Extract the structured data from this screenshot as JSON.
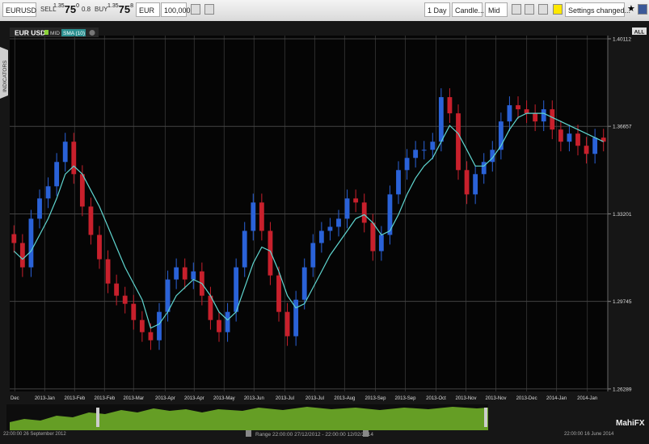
{
  "toolbar": {
    "symbol": "EURUSD",
    "sell_label": "SELL",
    "sell_price": {
      "prefix": "1.35",
      "pips": "75",
      "fraction": "0"
    },
    "spread": "0.8",
    "buy_label": "BUY",
    "buy_price": {
      "prefix": "1.35",
      "pips": "75",
      "fraction": "8"
    },
    "currency": "EUR",
    "amount": "100,000",
    "timeframe": "1 Day",
    "chart_style": "Candle...",
    "price_type": "Mid",
    "settings": "Settings changed..."
  },
  "chart_header": {
    "pair": "EUR USD",
    "mid": "MID",
    "all": "ALL"
  },
  "side_tab": "INDICATORS",
  "chart_data": {
    "type": "candlestick",
    "up_color": "#2a62d8",
    "down_color": "#c8202c",
    "grid": true,
    "xlim": [
      -0.5,
      69.5
    ],
    "ylim": [
      1.2619,
      1.4024
    ],
    "yticks": [
      1.40112,
      1.36657,
      1.33201,
      1.29745,
      1.26289
    ],
    "xticks": [
      {
        "value": 0.1,
        "label": "Dec"
      },
      {
        "value": 3.6,
        "label": "2013-Jan"
      },
      {
        "value": 7.1,
        "label": "2013-Feb"
      },
      {
        "value": 10.6,
        "label": "2013-Feb"
      },
      {
        "value": 14.0,
        "label": "2013-Mar"
      },
      {
        "value": 17.7,
        "label": "2013-Apr"
      },
      {
        "value": 21.1,
        "label": "2013-Apr"
      },
      {
        "value": 24.6,
        "label": "2013-May"
      },
      {
        "value": 28.1,
        "label": "2013-Jun"
      },
      {
        "value": 31.7,
        "label": "2013-Jul"
      },
      {
        "value": 35.2,
        "label": "2013-Jul"
      },
      {
        "value": 38.7,
        "label": "2013-Aug"
      },
      {
        "value": 42.3,
        "label": "2013-Sep"
      },
      {
        "value": 45.8,
        "label": "2013-Sep"
      },
      {
        "value": 49.4,
        "label": "2013-Oct"
      },
      {
        "value": 52.9,
        "label": "2013-Nov"
      },
      {
        "value": 56.4,
        "label": "2013-Nov"
      },
      {
        "value": 60.0,
        "label": "2013-Dec"
      },
      {
        "value": 63.5,
        "label": "2014-Jan"
      },
      {
        "value": 67.1,
        "label": "2014-Jan"
      }
    ],
    "open": [
      1.324,
      1.3205,
      1.3109,
      1.3301,
      1.3381,
      1.3429,
      1.3525,
      1.3605,
      1.3477,
      1.3349,
      1.3237,
      1.3141,
      1.3045,
      1.2997,
      1.2965,
      1.2901,
      1.2853,
      1.2821,
      1.2933,
      1.3061,
      1.3109,
      1.3061,
      1.3093,
      1.2997,
      1.2901,
      1.2853,
      1.2933,
      1.3109,
      1.3253,
      1.3365,
      1.3253,
      1.3077,
      1.2933,
      1.2837,
      1.2981,
      1.3109,
      1.3205,
      1.3253,
      1.3269,
      1.3301,
      1.3381,
      1.3365,
      1.3285,
      1.3173,
      1.3237,
      1.3397,
      1.3493,
      1.3541,
      1.3573,
      1.3573,
      1.3605,
      1.3781,
      1.3717,
      1.3493,
      1.3397,
      1.3477,
      1.3525,
      1.3573,
      1.3685,
      1.3749,
      1.3733,
      1.3717,
      1.3685,
      1.3733,
      1.3653,
      1.3605,
      1.3637,
      1.3589,
      1.3557,
      1.3621
    ],
    "high": [
      1.3275,
      1.324,
      1.3336,
      1.3416,
      1.3464,
      1.356,
      1.364,
      1.364,
      1.3512,
      1.3384,
      1.3272,
      1.3176,
      1.308,
      1.3032,
      1.3,
      1.2936,
      1.2888,
      1.2968,
      1.3096,
      1.3144,
      1.3144,
      1.3128,
      1.3128,
      1.3032,
      1.2936,
      1.2968,
      1.3144,
      1.3288,
      1.34,
      1.34,
      1.3288,
      1.3112,
      1.2968,
      1.3016,
      1.3144,
      1.324,
      1.3288,
      1.3304,
      1.3336,
      1.3416,
      1.3416,
      1.34,
      1.332,
      1.3272,
      1.3432,
      1.3528,
      1.3576,
      1.3608,
      1.3608,
      1.364,
      1.3816,
      1.3816,
      1.3752,
      1.3528,
      1.3512,
      1.356,
      1.3608,
      1.372,
      1.3784,
      1.3784,
      1.3768,
      1.3752,
      1.3768,
      1.3768,
      1.3688,
      1.3672,
      1.3672,
      1.3624,
      1.3656,
      1.3656
    ],
    "low": [
      1.3167,
      1.3071,
      1.3071,
      1.3263,
      1.3343,
      1.3391,
      1.3487,
      1.3439,
      1.3311,
      1.3199,
      1.3103,
      1.3007,
      1.2959,
      1.2927,
      1.2863,
      1.2815,
      1.2783,
      1.2783,
      1.2895,
      1.3023,
      1.3023,
      1.3023,
      1.2959,
      1.2863,
      1.2815,
      1.2815,
      1.2895,
      1.3071,
      1.3215,
      1.3215,
      1.3039,
      1.2895,
      1.2799,
      1.2799,
      1.2943,
      1.3071,
      1.3167,
      1.3215,
      1.3231,
      1.3263,
      1.3327,
      1.3247,
      1.3135,
      1.3135,
      1.3199,
      1.3359,
      1.3455,
      1.3503,
      1.3535,
      1.3535,
      1.3567,
      1.3679,
      1.3455,
      1.3359,
      1.3359,
      1.3439,
      1.3487,
      1.3535,
      1.3647,
      1.3695,
      1.3679,
      1.3647,
      1.3647,
      1.3615,
      1.3567,
      1.3567,
      1.3551,
      1.3519,
      1.3519,
      1.3567
    ],
    "close": [
      1.3205,
      1.3109,
      1.3301,
      1.3381,
      1.3429,
      1.3525,
      1.3605,
      1.3477,
      1.3349,
      1.3237,
      1.3141,
      1.3045,
      1.2997,
      1.2965,
      1.2901,
      1.2853,
      1.2821,
      1.2933,
      1.3061,
      1.3109,
      1.3061,
      1.3093,
      1.2997,
      1.2901,
      1.2853,
      1.2933,
      1.3109,
      1.3253,
      1.3365,
      1.3253,
      1.3077,
      1.2933,
      1.2837,
      1.2981,
      1.3109,
      1.3205,
      1.3253,
      1.3269,
      1.3301,
      1.3381,
      1.3365,
      1.3285,
      1.3173,
      1.3237,
      1.3397,
      1.3493,
      1.3541,
      1.3573,
      1.3573,
      1.3605,
      1.3781,
      1.3717,
      1.3493,
      1.3397,
      1.3477,
      1.3525,
      1.3573,
      1.3685,
      1.3749,
      1.3733,
      1.3717,
      1.3685,
      1.3733,
      1.3653,
      1.3605,
      1.3637,
      1.3589,
      1.3557,
      1.3621,
      1.3605
    ],
    "series": [
      {
        "name": "SMA (10)",
        "color": "#5fd6d0",
        "values": [
          1.3173,
          1.3141,
          1.3173,
          1.3237,
          1.3301,
          1.3381,
          1.3477,
          1.3509,
          1.3477,
          1.3413,
          1.3349,
          1.3269,
          1.3189,
          1.3109,
          1.3045,
          1.2981,
          1.2869,
          1.2885,
          1.2933,
          1.2997,
          1.3029,
          1.3061,
          1.3045,
          1.2997,
          1.2933,
          1.2901,
          1.2933,
          1.3029,
          1.3125,
          1.3189,
          1.3173,
          1.3093,
          1.2997,
          1.2949,
          1.2965,
          1.3029,
          1.3093,
          1.3157,
          1.3205,
          1.3253,
          1.3301,
          1.3317,
          1.3285,
          1.3237,
          1.3253,
          1.3317,
          1.3397,
          1.3461,
          1.3509,
          1.3541,
          1.3605,
          1.3669,
          1.3637,
          1.3573,
          1.3509,
          1.3509,
          1.3541,
          1.3589,
          1.3653,
          1.3701,
          1.3717,
          1.3717,
          1.3717,
          1.3701,
          1.3685,
          1.3669,
          1.3653,
          1.3637,
          1.3621,
          1.3605
        ]
      }
    ]
  },
  "navigator": {
    "start": "22:00:00 26 September 2012",
    "range": "Range 22:00:00 27/12/2012 - 22:00:00 12/02/2014",
    "end": "22:00:00 16 June 2014",
    "brand": "MahiFX"
  }
}
